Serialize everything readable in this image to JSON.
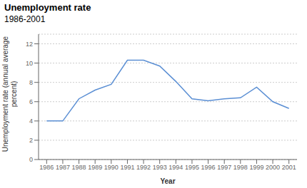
{
  "chart_data": {
    "type": "line",
    "title": "Unemployment rate",
    "subtitle": "1986-2001",
    "x": [
      1986,
      1987,
      1988,
      1989,
      1990,
      1991,
      1992,
      1993,
      1994,
      1995,
      1996,
      1997,
      1998,
      1999,
      2000,
      2001
    ],
    "values": [
      4.0,
      4.0,
      6.3,
      7.2,
      7.8,
      10.3,
      10.3,
      9.7,
      8.1,
      6.3,
      6.1,
      6.3,
      6.4,
      7.5,
      6.0,
      5.3
    ],
    "xlabel": "Year",
    "ylabel": "Unemployment rate (annual average\npercent)",
    "xlim": [
      1985.5,
      2001.5
    ],
    "xticks": [
      1986,
      1987,
      1988,
      1989,
      1990,
      1991,
      1992,
      1993,
      1994,
      1995,
      1996,
      1997,
      1998,
      1999,
      2000,
      2001
    ],
    "ylim": [
      0,
      13
    ],
    "yticks": [
      0,
      2,
      4,
      6,
      8,
      10,
      12
    ],
    "color": "#5b8fd4",
    "grid": true
  }
}
